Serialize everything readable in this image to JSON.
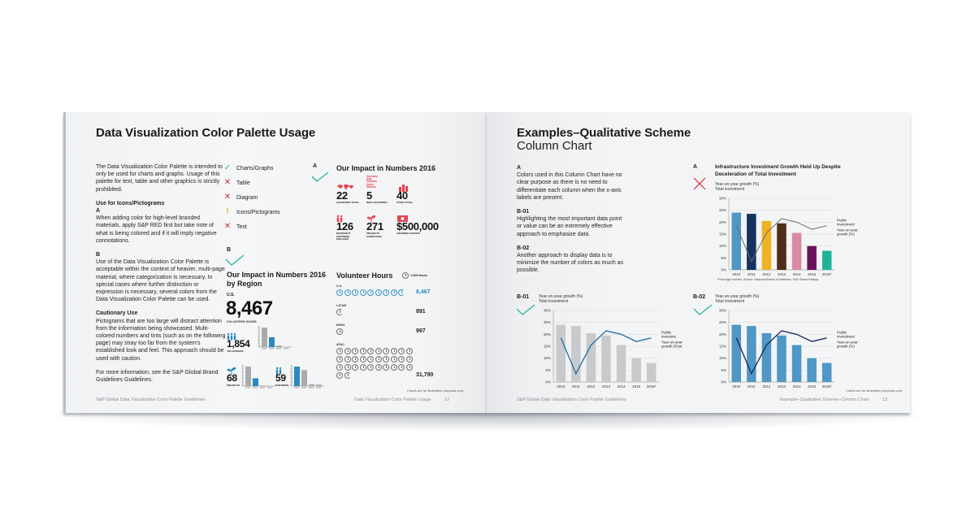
{
  "left_page": {
    "title": "Data Visualization Color Palette Usage",
    "intro": "The Data Visualization Color Palette is intended to only be used for charts and graphs. Usage of this palette for text, table and other graphics is strictly prohibited.",
    "icons_heading": "Use for Icons/Pictograms",
    "section_a_label": "A",
    "section_a_text": "When adding color for high-level branded materials, apply S&P RED first but take note of what is being colored and if it will imply negative connotations.",
    "section_b_label": "B",
    "section_b_text": "Use of the Data Visualization Color Palette is acceptable within the context of heavier, multi-page material, where categorization is necessary. In special cases where further distinction or expression is necessary, several colors from the Data Visualization Color Palette can be used.",
    "caution_heading": "Cautionary Use",
    "caution_text": "Pictograms that are too large will distract attention from the information being showcased. Multi-colored numbers and tints (such as on the following page) may stray too far from the system's established look and feel. This approach should be used with caution.",
    "more_info": "For more information, see the S&P Global Brand Guidelines Guidelines.",
    "usage_legend": [
      {
        "icon": "check-icon",
        "glyph": "✓",
        "color": "#2bb5a0",
        "label": "Charts/Graphs"
      },
      {
        "icon": "cross-icon",
        "glyph": "✕",
        "color": "#d6293b",
        "label": "Table"
      },
      {
        "icon": "cross-icon",
        "glyph": "✕",
        "color": "#d6293b",
        "label": "Diagram"
      },
      {
        "icon": "caution-icon",
        "glyph": "!",
        "color": "#f2b21e",
        "label": "Icons/Pictograms"
      },
      {
        "icon": "cross-icon",
        "glyph": "✕",
        "color": "#d6293b",
        "label": "Text"
      }
    ],
    "example_a": {
      "label": "A",
      "title": "Our Impact in Numbers 2016",
      "stats": [
        {
          "value": "22",
          "label": "Countries Total",
          "icon": "world-map-icon"
        },
        {
          "value": "5",
          "label": "New Countries",
          "icon": "country-list-icon",
          "list": [
            "Germany",
            "Italy",
            "Pakistan",
            "Spain",
            "Sweden"
          ]
        },
        {
          "value": "40",
          "label": "Cities Total",
          "icon": "city-icon"
        },
        {
          "value": "126",
          "label": "Nonprofit Partners Engaged",
          "icon": "people-icon"
        },
        {
          "value": "271",
          "label": "Projects Completed",
          "icon": "sprout-icon"
        },
        {
          "value": "$500,000",
          "label": "Awarded Grants",
          "icon": "money-icon"
        }
      ],
      "accent": "#e8424f"
    },
    "example_b": {
      "label": "B",
      "title": "Our Impact in Numbers 2016 by Region",
      "region": "U.S.",
      "headline": "8,467",
      "headline_label": "Volunteer Hours",
      "mini": [
        {
          "value": "1,854",
          "label": "Volunteers",
          "icon": "volunteers-icon",
          "bars": [
            100,
            50,
            8,
            2
          ],
          "highlight": 1
        },
        {
          "value": "68",
          "label": "Projects",
          "icon": "sprout-icon",
          "bars": [
            100,
            40,
            3,
            2
          ],
          "highlight": 1
        },
        {
          "value": "59",
          "label": "Partners",
          "icon": "partners-icon",
          "bars": [
            100,
            82,
            10,
            8
          ],
          "highlight": 0
        }
      ],
      "accent": "#2a89c0"
    },
    "volunteer_hours": {
      "title": "Volunteer Hours",
      "legend": "=1000 Hours",
      "rows": [
        {
          "region": "U.S.",
          "full": 8,
          "partial": true,
          "value": "8,467",
          "color": "blue"
        },
        {
          "region": "LATAM",
          "full": 0,
          "partial": true,
          "value": "891",
          "color": "gray"
        },
        {
          "region": "EMEA",
          "full": 1,
          "partial": false,
          "value": "997",
          "color": "gray"
        },
        {
          "region": "APAC",
          "full": 31,
          "partial": true,
          "value": "31,790",
          "color": "gray"
        }
      ]
    },
    "chart_note": "Charts are for illustrative purposes only",
    "footer_left": "S&P Global Data Visualization Color Palette Guidelines",
    "footer_right": "Data Visualization Color Palette Usage",
    "page_number": "12"
  },
  "right_page": {
    "title": "Examples–Qualitative Scheme",
    "subtitle": "Column Chart",
    "notes": [
      {
        "label": "A",
        "text": "Colors used in this Column Chart have no clear purpose as there is no need to differentiate each column when the x-axis labels are present."
      },
      {
        "label": "B-01",
        "text": "Highlighting the most important data point or value can be an extremely effective approach to emphasize data."
      },
      {
        "label": "B-02",
        "text": "Another approach to display data is to minimize the number of colors as much as possible."
      }
    ],
    "chart_a_label": "A",
    "chart_b01_label": "B-01",
    "chart_b02_label": "B-02",
    "chart_a_title": "Infrastructure Investment Growth Held Up Despite Deceleration of Total Investment",
    "series_label_1": "Year-on-year growth (%)",
    "series_label_2": "Total investment",
    "line_label_1": "Public investment",
    "line_label_2": "Year-on-year growth (%)",
    "line_label_1_cut": "Public investme",
    "line_label_2_cut": "Year-on-year growth (%)nt",
    "source": "*First eight months. Source: National Bureau of Statistics, S&P Global Ratings.",
    "chart_note": "Charts are for illustrative purposes only",
    "footer_left": "S&P Global Data Visualization Color Palette Guidelines",
    "footer_right": "Example–Qualitative Scheme–Column Chart",
    "page_number": "13"
  },
  "chart_data": [
    {
      "type": "bar",
      "name": "chart-a",
      "title": "Infrastructure Investment Growth Held Up Despite Deceleration of Total Investment",
      "categories": [
        "2010",
        "2011",
        "2012",
        "2013",
        "2014",
        "2015",
        "2016*"
      ],
      "series": [
        {
          "name": "Total investment (YoY growth %)",
          "type": "bar",
          "values": [
            24,
            23.5,
            20.5,
            19.5,
            15.5,
            10,
            8
          ]
        },
        {
          "name": "Public investment (YoY growth %)",
          "type": "line",
          "values": [
            18.5,
            3.5,
            15.5,
            21.5,
            20,
            17,
            18.5
          ]
        }
      ],
      "bar_colors": [
        "#4f97c4",
        "#14335e",
        "#efb224",
        "#4e2d16",
        "#d98aa2",
        "#6a1259",
        "#1fb39a"
      ],
      "line_color": "#6a6a6a",
      "yticks": [
        "0%",
        "5%",
        "10%",
        "15%",
        "20%",
        "25%",
        "30%"
      ],
      "ylim": [
        0,
        30
      ],
      "grid": true
    },
    {
      "type": "bar",
      "name": "chart-b01",
      "categories": [
        "2010",
        "2011",
        "2012",
        "2013",
        "2014",
        "2015",
        "2016*"
      ],
      "series": [
        {
          "name": "Total investment (YoY growth %)",
          "type": "bar",
          "values": [
            24,
            23.5,
            20.5,
            19.5,
            15.5,
            10,
            8
          ]
        },
        {
          "name": "Public investment (YoY growth %)",
          "type": "line",
          "values": [
            18.5,
            3.5,
            15.5,
            21.5,
            20,
            17,
            18.5
          ]
        }
      ],
      "bar_color": "#c8c9cb",
      "line_color": "#1b6e9e",
      "yticks": [
        "0%",
        "5%",
        "10%",
        "15%",
        "20%",
        "25%",
        "30%"
      ],
      "ylim": [
        0,
        30
      ],
      "grid": true
    },
    {
      "type": "bar",
      "name": "chart-b02",
      "categories": [
        "2010",
        "2011",
        "2012",
        "2013",
        "2014",
        "2015",
        "2016*"
      ],
      "series": [
        {
          "name": "Total investment (YoY growth %)",
          "type": "bar",
          "values": [
            24,
            23.5,
            20.5,
            19.5,
            15.5,
            10,
            8
          ]
        },
        {
          "name": "Public investment (YoY growth %)",
          "type": "line",
          "values": [
            18.5,
            3.5,
            15.5,
            21.5,
            20,
            17,
            18.5
          ]
        }
      ],
      "bar_color": "#4f97c4",
      "line_color": "#14285a",
      "yticks": [
        "0%",
        "5%",
        "10%",
        "15%",
        "20%",
        "25%",
        "30%"
      ],
      "ylim": [
        0,
        30
      ],
      "grid": true
    }
  ]
}
